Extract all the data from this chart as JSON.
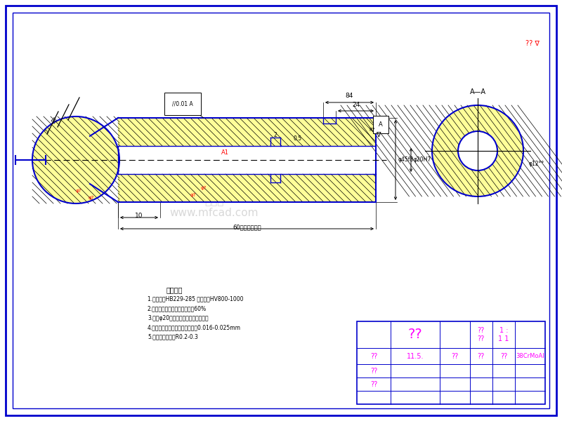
{
  "bg_color": "#f0f0f0",
  "border_color": "#0000cc",
  "line_color": "#000000",
  "blue_color": "#0000cc",
  "yellow_color": "#ffff99",
  "red_color": "#ff0000",
  "magenta_color": "#ff00ff",
  "tech_notes": [
    "技术要求",
    "1.调制处理HB229-285 气体氮化HV800-1000",
    "2.球头与滑靴淬贡接触面积大于60%",
    "3.外径φ20氮化后研磨、研磨、抛光蓝",
    "4.与缸体柱塞孔配合间隙直径方向0.016-0.025mm",
    "5.毛刺、锐边倒钝R0.2-0.3"
  ],
  "tb_texts": {
    "name": "??",
    "scale_label": "??",
    "scale_val": "1 :",
    "sheet_label": "??",
    "sheet_val": "1 1",
    "col1": "??",
    "date": "11.5.",
    "col3": "??",
    "col4": "??",
    "col5": "??",
    "material": "38CrMoAl",
    "row3col1": "??",
    "row4col1": "??"
  }
}
